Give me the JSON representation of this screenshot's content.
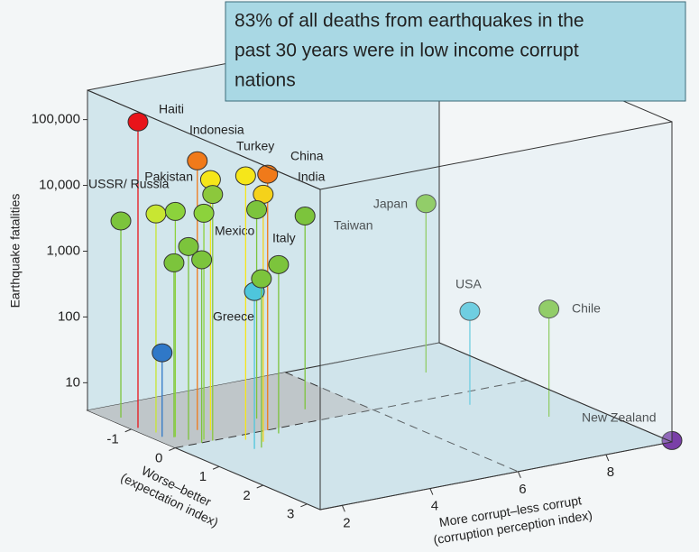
{
  "chart_data": {
    "type": "scatter3d",
    "title_lines": [
      "83% of all deaths from earthquakes in the",
      "past 30 years were in low income  corrupt",
      "nations"
    ],
    "ylabel": "Earthquake fatalities",
    "xlabel_lines": [
      "More corrupt–less corrupt",
      "(corruption perception index)"
    ],
    "zlabel_lines": [
      "Worse–better",
      "(expectation index)"
    ],
    "log_y": true,
    "ylim": [
      3.8,
      280000
    ],
    "yticks": [
      10,
      100,
      {
        "value": 1000,
        "label": "1,000"
      },
      {
        "value": 10000,
        "label": "10,000"
      },
      {
        "value": 100000,
        "label": "100,000"
      }
    ],
    "xlim": [
      1.5,
      9.5
    ],
    "xticks": [
      2,
      4,
      6,
      8
    ],
    "zlim": [
      -2,
      3.3
    ],
    "zticks": [
      -1,
      0,
      1,
      2,
      3
    ],
    "labels": [
      "Haiti",
      "Pakistan",
      "Indonesia",
      "Mexico",
      "Turkey",
      "China",
      "India",
      "Italy",
      "Taiwan",
      "Japan",
      "USA",
      "Chile",
      "New Zealand",
      "Greece",
      "USSR/ Russia",
      null,
      null,
      null,
      null,
      null,
      null,
      null,
      null,
      null
    ],
    "x": [
      1.65,
      2.5,
      2.7,
      2.35,
      2.9,
      3.6,
      3.1,
      3.85,
      4.95,
      8.2,
      7.7,
      8.5,
      9.5,
      2.7,
      1.76,
      1.76,
      1.9,
      2.25,
      2.0,
      1.87,
      2.1,
      2.86,
      3.65,
      1.7
    ],
    "z": [
      -1,
      -0.5,
      -0.4,
      0,
      0.2,
      0,
      0.4,
      -0.5,
      -0.5,
      -1,
      0.5,
      1.5,
      3.3,
      0.6,
      -1.5,
      -0.7,
      -0.4,
      -0.1,
      -0.2,
      -0.4,
      0,
      0.6,
      0.2,
      -0.5
    ],
    "y": [
      170000,
      47000,
      24500,
      21000,
      39000,
      29500,
      22000,
      5700,
      3300,
      1400,
      100,
      165,
      4,
      940,
      3700,
      8000,
      10200,
      10500,
      3300,
      1700,
      2300,
      1400,
      1400,
      72
    ],
    "colors": [
      "#e8141a",
      "#f07a1a",
      "#f5e61a",
      "#8cc83c",
      "#f5e61a",
      "#f07a1a",
      "#f5d21a",
      "#7cc43c",
      "#7cc43c",
      "#7cc43c",
      "#4ec6dc",
      "#7cc43c",
      "#7a3fa8",
      "#4ec6dc",
      "#7cc43c",
      "#c8e632",
      "#8cd23c",
      "#8cd23c",
      "#7cc43c",
      "#7cc43c",
      "#7cc43c",
      "#7cc43c",
      "#7cc43c",
      "#2f78c8"
    ]
  }
}
